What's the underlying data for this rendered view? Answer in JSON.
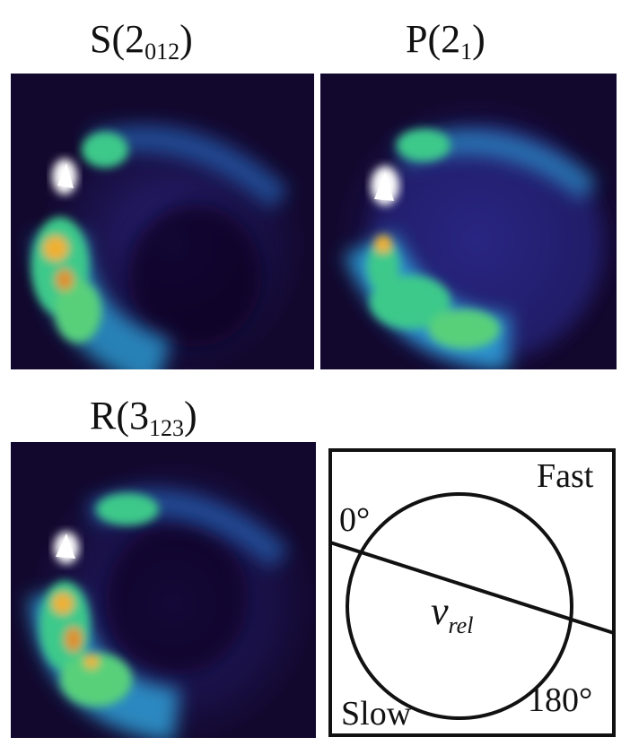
{
  "panels": [
    {
      "label_main": "S(2",
      "label_sub": "012",
      "label_close": ")"
    },
    {
      "label_main": "P(2",
      "label_sub": "1",
      "label_close": ")"
    },
    {
      "label_main": "R(3",
      "label_sub": "123",
      "label_close": ")"
    }
  ],
  "legend": {
    "fast": "Fast",
    "slow": "Slow",
    "angle_start": "0°",
    "angle_end": "180°",
    "vrel_main": "v",
    "vrel_sub": "rel"
  },
  "colors": {
    "background": "#12082e",
    "low": "#2a1f7a",
    "mid": "#2ea8e0",
    "high": "#3ec98a",
    "peak": "#f0b030",
    "saturated": "#ffffff"
  }
}
